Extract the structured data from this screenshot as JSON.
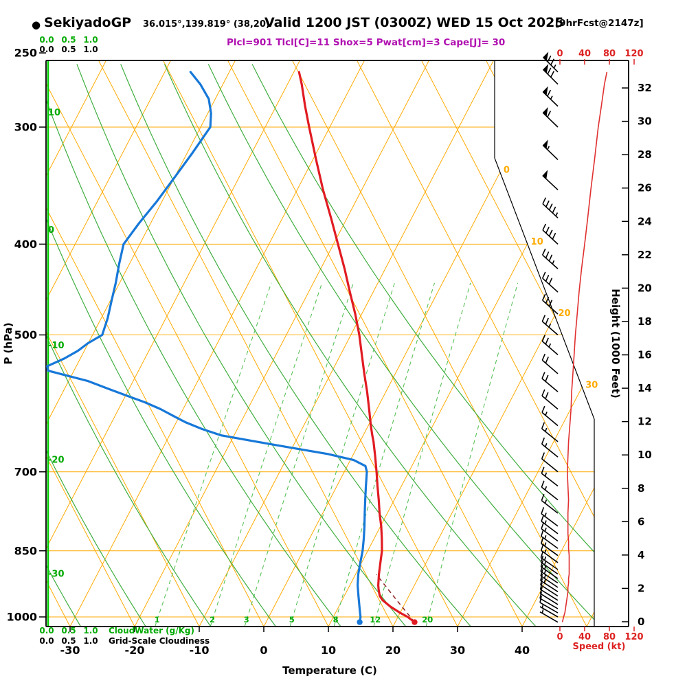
{
  "header": {
    "station_bullet": "●",
    "station": "SekiyadoGP",
    "coords": "36.015°,139.819° (38,20)",
    "valid": "Valid 1200 JST (0300Z) WED 15 Oct 2025",
    "fcst": "[9hrFcst@2147z]",
    "params": "Plcl=901 Tlcl[C]=11 Shox=5 Pwat[cm]=3 Cape[J]= 30"
  },
  "axes": {
    "pressure_label": "P (hPa)",
    "pressure_ticks": [
      250,
      300,
      400,
      500,
      700,
      850,
      1000
    ],
    "temp_label": "Temperature (C)",
    "temp_ticks": [
      -30,
      -20,
      -10,
      0,
      10,
      20,
      30,
      40
    ],
    "height_label": "Height (1000 Feet)",
    "height_ticks": [
      0,
      2,
      4,
      6,
      8,
      10,
      12,
      14,
      16,
      18,
      20,
      22,
      24,
      26,
      28,
      30,
      32
    ],
    "speed_label": "Speed (kt)",
    "speed_ticks": [
      0,
      40,
      80,
      120
    ],
    "cloud_scale": [
      "0.0",
      "0.5",
      "1.0"
    ],
    "cloudwater_label": "CloudWater (g/Kg)",
    "cloudiness_label": "Grid-Scale Cloudiness"
  },
  "chart_data": {
    "type": "skewt_logp_sounding",
    "pressure_hpa_range": [
      250,
      1025
    ],
    "parcel": {
      "plcl_hpa": 901,
      "tlcl_c": 11,
      "showalter_index": 5,
      "pwat_cm": 3,
      "cape_j": 30,
      "surface_temp_c": 23,
      "surface_dewpoint_c": 14.5
    },
    "cloud_water_gkg": 0,
    "grid_scale_cloudiness": 0,
    "temperature_profile": [
      [
        1013,
        23
      ],
      [
        1000,
        21.5
      ],
      [
        990,
        20
      ],
      [
        975,
        18
      ],
      [
        960,
        16.3
      ],
      [
        950,
        15.5
      ],
      [
        935,
        14.8
      ],
      [
        925,
        14.4
      ],
      [
        900,
        13.6
      ],
      [
        875,
        12.9
      ],
      [
        850,
        12.2
      ],
      [
        825,
        11.2
      ],
      [
        800,
        10.1
      ],
      [
        775,
        8.8
      ],
      [
        750,
        7.6
      ],
      [
        725,
        6.3
      ],
      [
        700,
        5.0
      ],
      [
        675,
        3.6
      ],
      [
        650,
        2.1
      ],
      [
        640,
        1.4
      ],
      [
        625,
        0.4
      ],
      [
        600,
        -1.2
      ],
      [
        575,
        -2.9
      ],
      [
        550,
        -4.8
      ],
      [
        525,
        -6.7
      ],
      [
        500,
        -8.7
      ],
      [
        475,
        -11.0
      ],
      [
        450,
        -13.6
      ],
      [
        425,
        -16.3
      ],
      [
        400,
        -19.3
      ],
      [
        375,
        -22.5
      ],
      [
        350,
        -26.0
      ],
      [
        325,
        -29.5
      ],
      [
        300,
        -33.2
      ],
      [
        285,
        -35.5
      ],
      [
        270,
        -37.8
      ],
      [
        262,
        -39.2
      ]
    ],
    "dewpoint_profile": [
      [
        1013,
        14.5
      ],
      [
        1000,
        14.2
      ],
      [
        990,
        13.8
      ],
      [
        975,
        13.2
      ],
      [
        950,
        12.2
      ],
      [
        925,
        11.2
      ],
      [
        900,
        10.4
      ],
      [
        875,
        9.8
      ],
      [
        850,
        9.2
      ],
      [
        825,
        8.4
      ],
      [
        800,
        7.5
      ],
      [
        775,
        6.5
      ],
      [
        750,
        5.5
      ],
      [
        725,
        4.5
      ],
      [
        700,
        3.5
      ],
      [
        690,
        2.8
      ],
      [
        680,
        0.5
      ],
      [
        670,
        -4
      ],
      [
        660,
        -10
      ],
      [
        650,
        -16
      ],
      [
        640,
        -22
      ],
      [
        630,
        -25.5
      ],
      [
        620,
        -28.5
      ],
      [
        610,
        -31
      ],
      [
        600,
        -33.5
      ],
      [
        590,
        -36.5
      ],
      [
        580,
        -40
      ],
      [
        570,
        -43.5
      ],
      [
        560,
        -47
      ],
      [
        552,
        -51
      ],
      [
        546,
        -54
      ],
      [
        540,
        -54.5
      ],
      [
        530,
        -52.5
      ],
      [
        520,
        -51
      ],
      [
        510,
        -50
      ],
      [
        500,
        -48.5
      ],
      [
        480,
        -49
      ],
      [
        460,
        -49.8
      ],
      [
        440,
        -50.6
      ],
      [
        420,
        -51.6
      ],
      [
        400,
        -52.5
      ],
      [
        380,
        -51.8
      ],
      [
        360,
        -50.8
      ],
      [
        340,
        -50
      ],
      [
        320,
        -49.2
      ],
      [
        300,
        -48.5
      ],
      [
        290,
        -49.5
      ],
      [
        280,
        -51
      ],
      [
        270,
        -53.5
      ],
      [
        262,
        -56
      ]
    ],
    "wind_profile": [
      [
        1013,
        300,
        4
      ],
      [
        1000,
        300,
        6
      ],
      [
        990,
        300,
        8
      ],
      [
        980,
        300,
        9
      ],
      [
        970,
        302,
        10
      ],
      [
        960,
        302,
        11
      ],
      [
        950,
        303,
        12
      ],
      [
        940,
        303,
        13
      ],
      [
        930,
        304,
        13
      ],
      [
        920,
        304,
        14
      ],
      [
        910,
        305,
        14
      ],
      [
        900,
        305,
        15
      ],
      [
        890,
        305,
        15
      ],
      [
        875,
        306,
        15
      ],
      [
        860,
        306,
        15
      ],
      [
        845,
        306,
        14
      ],
      [
        830,
        307,
        14
      ],
      [
        815,
        307,
        13
      ],
      [
        800,
        307,
        13
      ],
      [
        775,
        308,
        13
      ],
      [
        750,
        308,
        14
      ],
      [
        725,
        308,
        13
      ],
      [
        700,
        309,
        12
      ],
      [
        675,
        309,
        13
      ],
      [
        650,
        309,
        14
      ],
      [
        625,
        310,
        16
      ],
      [
        600,
        310,
        18
      ],
      [
        575,
        310,
        19
      ],
      [
        550,
        311,
        21
      ],
      [
        525,
        311,
        23
      ],
      [
        500,
        311,
        25
      ],
      [
        475,
        312,
        28
      ],
      [
        450,
        312,
        31
      ],
      [
        425,
        312,
        35
      ],
      [
        400,
        313,
        40
      ],
      [
        375,
        313,
        45
      ],
      [
        350,
        313,
        50
      ],
      [
        325,
        314,
        56
      ],
      [
        300,
        314,
        62
      ],
      [
        285,
        314,
        67
      ],
      [
        270,
        315,
        72
      ],
      [
        262,
        315,
        76
      ]
    ],
    "isotherms_c": {
      "min": -110,
      "max": 160,
      "step": 10
    },
    "dry_adiabats_theta_c": [
      -30,
      -20,
      -10,
      0,
      10,
      20,
      30,
      40,
      50,
      60
    ],
    "dry_adiabat_left_labels": [
      10,
      0,
      -10,
      -20,
      -30
    ],
    "mixing_ratio_gkg": [
      1,
      2,
      3,
      5,
      8,
      12,
      20
    ],
    "isotherm_right_labels": [
      0,
      10,
      20,
      30
    ],
    "colors": {
      "temperature": "#e11b22",
      "dewpoint": "#1778d8",
      "grid_orange": "#ffaa00",
      "adiabat_green": "#3fae3f",
      "mixing_green": "#58c158",
      "label_green": "#00aa00",
      "cloudwater_green": "#00cc00",
      "wind": "#000000",
      "speed_curve": "#e03030",
      "parcel": "#8b2020",
      "params_magenta": "#b010b0",
      "axis_red": "#dd2222"
    }
  }
}
